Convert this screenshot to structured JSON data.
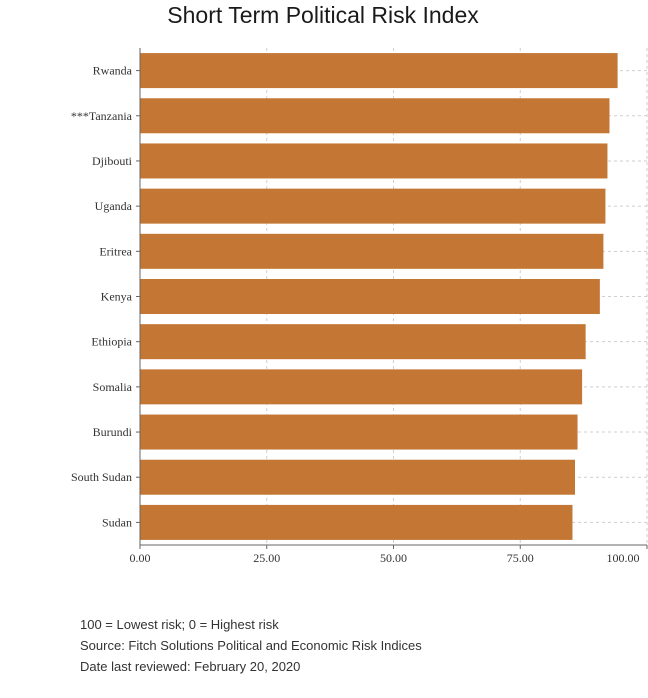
{
  "chart_data": {
    "type": "bar",
    "orientation": "horizontal",
    "title": "Short Term Political Risk Index",
    "categories": [
      "Rwanda",
      "***Tanzania",
      "Djibouti",
      "Uganda",
      "Eritrea",
      "Kenya",
      "Ethiopia",
      "Somalia",
      "Burundi",
      "South Sudan",
      "Sudan"
    ],
    "values": [
      94.2,
      92.6,
      92.2,
      91.8,
      91.4,
      90.7,
      87.9,
      87.2,
      86.3,
      85.8,
      85.3
    ],
    "xlim": [
      0,
      100
    ],
    "xticks": [
      "0.00",
      "25.00",
      "50.00",
      "75.00",
      "100.00"
    ],
    "bar_color": "#c47634",
    "grid": true,
    "xlabel": "",
    "ylabel": ""
  },
  "footer": {
    "line1": "100 = Lowest risk; 0 = Highest risk",
    "line2": "Source: Fitch Solutions Political and Economic Risk Indices",
    "line3": "Date last reviewed: February 20, 2020"
  }
}
